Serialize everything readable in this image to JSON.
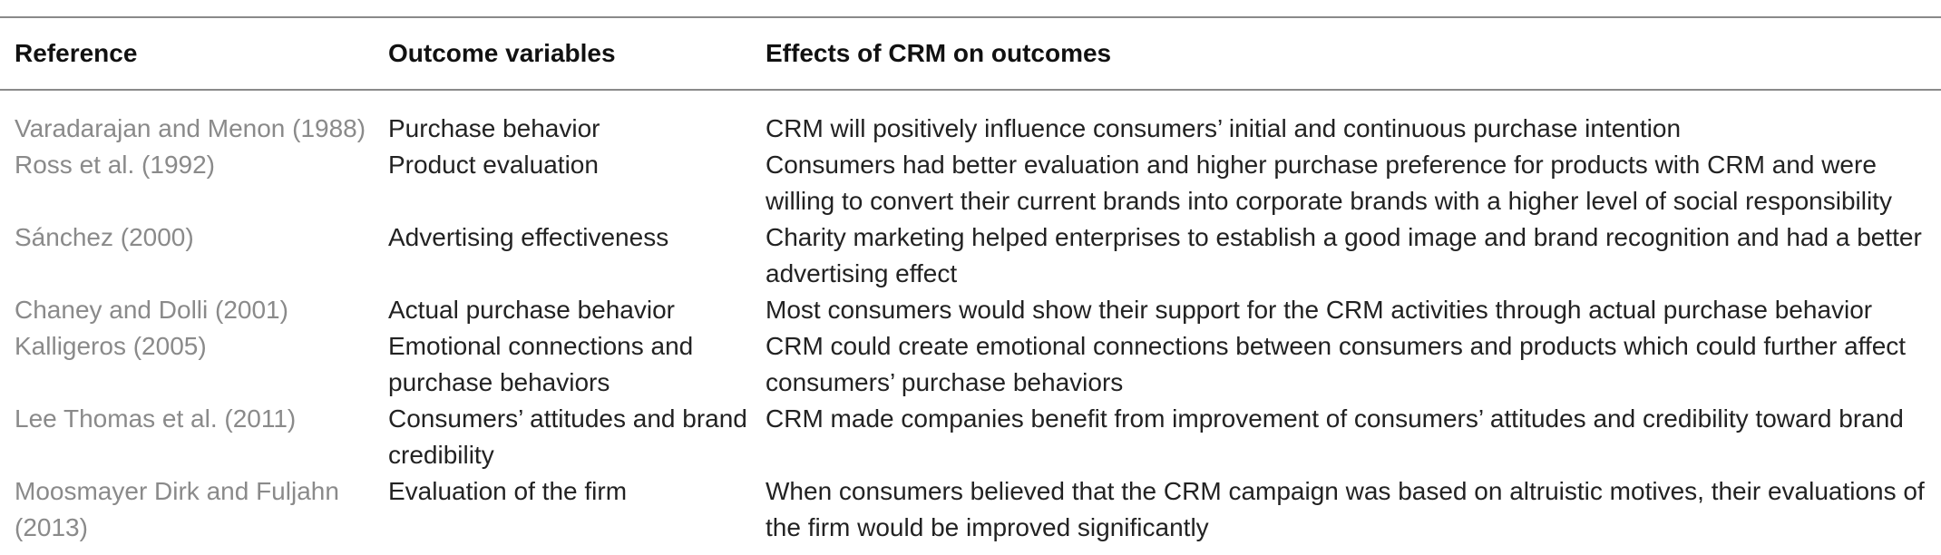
{
  "table": {
    "headers": {
      "reference": "Reference",
      "outcome": "Outcome variables",
      "effects": "Effects of CRM on outcomes"
    },
    "rows": [
      {
        "reference": "Varadarajan and Menon (1988)",
        "outcome": "Purchase behavior",
        "effects": "CRM will positively influence consumers’ initial and continuous purchase intention"
      },
      {
        "reference": "Ross et al. (1992)",
        "outcome": "Product evaluation",
        "effects": "Consumers had better evaluation and higher purchase preference for products with CRM and were willing to convert their current brands into corporate brands with a higher level of social responsibility"
      },
      {
        "reference": "Sánchez (2000)",
        "outcome": "Advertising effectiveness",
        "effects": "Charity marketing helped enterprises to establish a good image and brand recognition and had a better advertising effect"
      },
      {
        "reference": "Chaney and Dolli (2001)",
        "outcome": "Actual purchase behavior",
        "effects": "Most consumers would show their support for the CRM activities through actual purchase behavior"
      },
      {
        "reference": "Kalligeros (2005)",
        "outcome": "Emotional connections and purchase behaviors",
        "effects": "CRM could create emotional connections between consumers and products which could further affect consumers’ purchase behaviors"
      },
      {
        "reference": "Lee Thomas et al. (2011)",
        "outcome": "Consumers’ attitudes and brand credibility",
        "effects": "CRM made companies benefit from improvement of consumers’ attitudes and credibility toward brand"
      },
      {
        "reference": "Moosmayer Dirk and Fuljahn (2013)",
        "outcome": "Evaluation of the firm",
        "effects": "When consumers believed that the CRM campaign was based on altruistic motives, their evaluations of the firm would be improved significantly"
      }
    ]
  }
}
